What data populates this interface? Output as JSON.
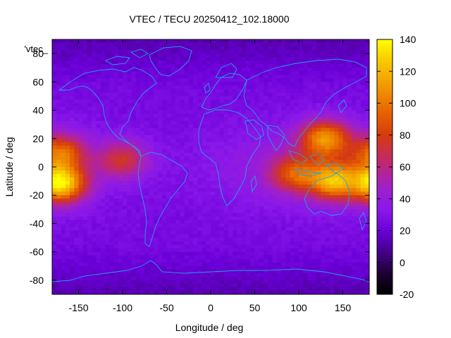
{
  "title": "VTEC / TECU 20250412_102.18000",
  "xlabel": "Longitude / deg",
  "ylabel": "Latitude / deg",
  "legend_key": "'vtec_",
  "x_ticks": [
    -150,
    -100,
    -50,
    0,
    50,
    100,
    150
  ],
  "y_ticks": [
    -80,
    -60,
    -40,
    -20,
    0,
    20,
    40,
    60,
    80
  ],
  "colorbar_ticks": [
    -20,
    0,
    20,
    40,
    60,
    80,
    100,
    120,
    140
  ],
  "chart_data": {
    "type": "heatmap",
    "title": "VTEC / TECU 20250412_102.18000",
    "xlabel": "Longitude / deg",
    "ylabel": "Latitude / deg",
    "xlim": [
      -180,
      180
    ],
    "ylim": [
      -90,
      90
    ],
    "zlim": [
      -20,
      140
    ],
    "colormap": "gnuplot-pm3d (black-purple-red-orange-yellow)",
    "hotspots": [
      {
        "lon": -170,
        "lat": -12,
        "value": 125
      },
      {
        "lon": -170,
        "lat": 10,
        "value": 85
      },
      {
        "lon": 130,
        "lat": 20,
        "value": 100
      },
      {
        "lon": 140,
        "lat": -10,
        "value": 105
      },
      {
        "lon": 95,
        "lat": -5,
        "value": 75
      },
      {
        "lon": -100,
        "lat": 5,
        "value": 70
      }
    ],
    "background_value": 25,
    "polar_value": 15
  },
  "colors": {
    "coastline": "#22a0e8",
    "frame": "#000000"
  }
}
